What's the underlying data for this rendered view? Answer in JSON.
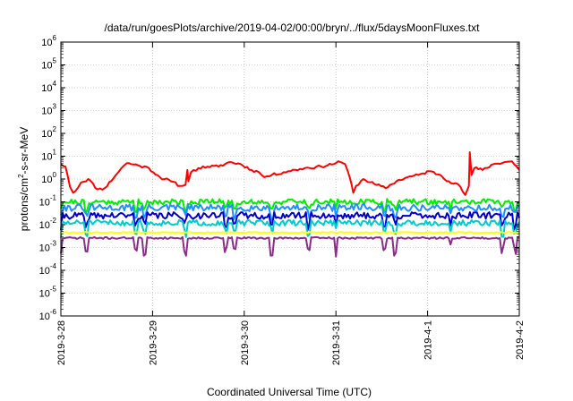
{
  "chart_data": {
    "type": "line",
    "title": "/data/run/goesPlots/archive/2019-04-02/00:00/bryn/../flux/5daysMoonFluxes.txt",
    "xlabel": "Coordinated Universal Time (UTC)",
    "ylabel": "protons/cm²-s-sr-MeV",
    "ylabel_parts": {
      "pre": "protons/cm",
      "sup": "2",
      "post": "-s-sr-MeV"
    },
    "x_ticks": [
      "2019-3-28",
      "2019-3-29",
      "2019-3-30",
      "2019-3-31",
      "2019-4-1",
      "2019-4-2"
    ],
    "xlim": [
      "2019-03-28T00:00",
      "2019-04-02T00:00"
    ],
    "y_scale": "log",
    "ylim": [
      1e-06,
      1000000.0
    ],
    "y_tick_exponents": [
      -6,
      -5,
      -4,
      -3,
      -2,
      -1,
      0,
      1,
      2,
      3,
      4,
      5,
      6
    ],
    "grid": true,
    "legend": "none",
    "series": [
      {
        "color": "#ff0000",
        "noise": 0.12,
        "seed": 11,
        "x": [
          "2019-03-28T00:00",
          "2019-03-28T01:12",
          "2019-03-28T01:44",
          "2019-03-28T02:24",
          "2019-03-28T03:12",
          "2019-03-28T03:50",
          "2019-03-28T05:16",
          "2019-03-28T07:12",
          "2019-03-28T09:36",
          "2019-03-28T11:31",
          "2019-03-28T14:24",
          "2019-03-28T15:50",
          "2019-03-28T17:16",
          "2019-03-28T20:09",
          "2019-03-28T23:02",
          "2019-03-29T01:55",
          "2019-03-29T04:48",
          "2019-03-29T07:12",
          "2019-03-29T08:38",
          "2019-03-29T09:07",
          "2019-03-29T09:22",
          "2019-03-29T10:05",
          "2019-03-29T12:00",
          "2019-03-29T14:24",
          "2019-03-29T17:16",
          "2019-03-29T20:09",
          "2019-03-29T23:02",
          "2019-03-30T01:55",
          "2019-03-30T03:50",
          "2019-03-30T05:16",
          "2019-03-30T07:12",
          "2019-03-30T11:31",
          "2019-03-30T15:50",
          "2019-03-30T20:09",
          "2019-03-31T00:00",
          "2019-03-31T01:12",
          "2019-03-31T02:24",
          "2019-03-31T03:36",
          "2019-03-31T04:33",
          "2019-03-31T05:16",
          "2019-03-31T07:12",
          "2019-03-31T10:05",
          "2019-03-31T12:58",
          "2019-03-31T15:50",
          "2019-03-31T18:43",
          "2019-03-31T21:36",
          "2019-04-01T00:28",
          "2019-04-01T03:21",
          "2019-04-01T05:31",
          "2019-04-01T07:55",
          "2019-04-01T09:50",
          "2019-04-01T10:48",
          "2019-04-01T11:02",
          "2019-04-01T11:31",
          "2019-04-01T12:14",
          "2019-04-01T14:24",
          "2019-04-01T17:16",
          "2019-04-01T20:09",
          "2019-04-01T22:04",
          "2019-04-02T00:00"
        ],
        "y": [
          4.5,
          3.5,
          1.5,
          0.45,
          0.25,
          0.3,
          0.7,
          1.0,
          0.35,
          0.4,
          1.5,
          3.0,
          5.0,
          4.0,
          3.0,
          1.2,
          0.8,
          0.5,
          0.55,
          2.5,
          0.8,
          2.0,
          3.0,
          3.5,
          3.5,
          5.5,
          4.5,
          2.5,
          2.0,
          1.2,
          1.5,
          2.2,
          3.0,
          3.5,
          5.0,
          5.5,
          4.5,
          1.2,
          0.25,
          0.5,
          1.0,
          0.6,
          0.4,
          0.8,
          1.2,
          1.5,
          2.2,
          1.5,
          0.8,
          0.6,
          0.2,
          0.5,
          15,
          1.5,
          3.0,
          2.5,
          4.5,
          5.5,
          6.0,
          2.5
        ]
      },
      {
        "color": "#00ee00",
        "base": 0.1,
        "noise": 0.25,
        "dips": 0.3,
        "seed": 21
      },
      {
        "color": "#1e8fff",
        "base": 0.055,
        "noise": 0.3,
        "dips": 0.35,
        "seed": 31
      },
      {
        "color": "#0000cd",
        "base": 0.025,
        "noise": 0.3,
        "dips": 0.35,
        "seed": 41
      },
      {
        "color": "#00cccc",
        "base": 0.012,
        "noise": 0.25,
        "dips": 0.4,
        "seed": 51
      },
      {
        "color": "#ffff00",
        "base": 0.0045,
        "noise": 0.05,
        "dips": 0.0,
        "seed": 61
      },
      {
        "color": "#8b2c8b",
        "base": 0.0026,
        "noise": 0.08,
        "dips": 0.5,
        "seed": 71
      }
    ]
  }
}
